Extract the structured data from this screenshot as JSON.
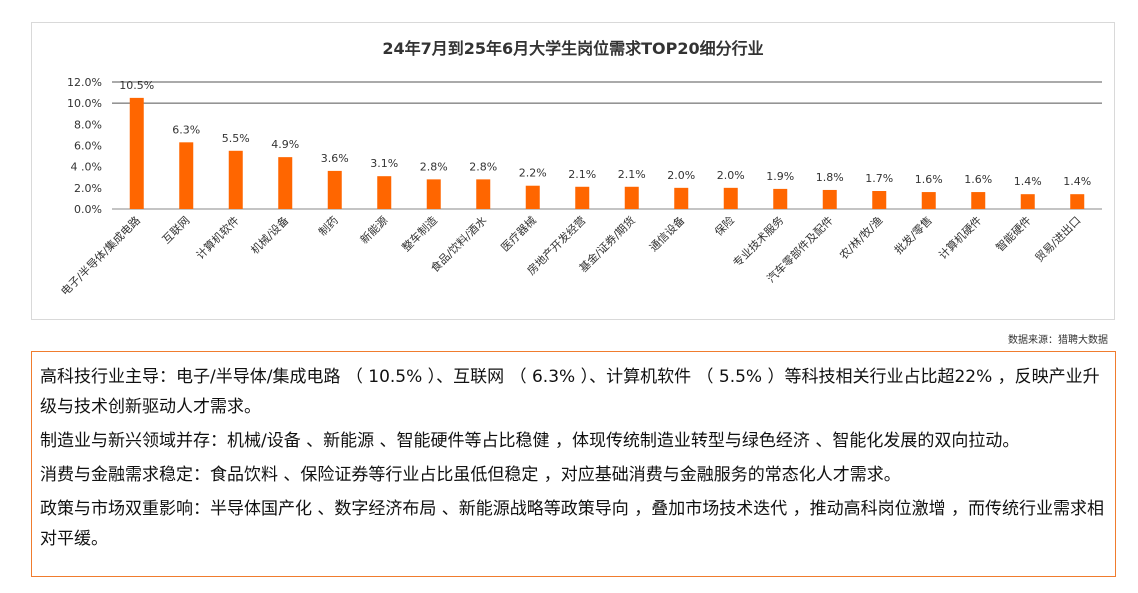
{
  "chart_data": {
    "type": "bar",
    "title": "24年7月到25年6月大学生岗位需求TOP20细分行业",
    "categories": [
      "电子/半导体/集成电路",
      "互联网",
      "计算机软件",
      "机械/设备",
      "制药",
      "新能源",
      "整车制造",
      "食品/饮料/酒水",
      "医疗器械",
      "房地产开发经营",
      "基金/证券/期货",
      "通信设备",
      "保险",
      "专业技术服务",
      "汽车零部件及配件",
      "农/林/牧/渔",
      "批发/零售",
      "计算机硬件",
      "智能硬件",
      "贸易/进出口"
    ],
    "values": [
      10.5,
      6.3,
      5.5,
      4.9,
      3.6,
      3.1,
      2.8,
      2.8,
      2.2,
      2.1,
      2.1,
      2.0,
      2.0,
      1.9,
      1.8,
      1.7,
      1.6,
      1.6,
      1.4,
      1.4
    ],
    "value_labels": [
      "10.5%",
      "6.3%",
      "5.5%",
      "4.9%",
      "3.6%",
      "3.1%",
      "2.8%",
      "2.8%",
      "2.2%",
      "2.1%",
      "2.1%",
      "2.0%",
      "2.0%",
      "1.9%",
      "1.8%",
      "1.7%",
      "1.6%",
      "1.6%",
      "1.4%",
      "1.4%"
    ],
    "y_ticks": [
      0,
      2,
      4,
      6,
      8,
      10,
      12
    ],
    "y_tick_labels": [
      "0.0%",
      "2.0%",
      "4 .0%",
      "6.0%",
      "8.0%",
      "10.0%",
      "12.0%"
    ],
    "ylim": [
      0,
      12
    ],
    "bar_color": "#ff6600",
    "grid": "top lines only",
    "xlabel": "",
    "ylabel": ""
  },
  "source_text": "数据来源：猎聘大数据",
  "notes": [
    "高科技行业主导：电子/半导体/集成电路 （ 10.5% ）、互联网 （ 6.3% ）、计算机软件 （ 5.5% ）等科技相关行业占比超22% ，反映产业升级与技术创新驱动人才需求。",
    "制造业与新兴领域并存：机械/设备 、新能源 、智能硬件等占比稳健 ，体现传统制造业转型与绿色经济 、智能化发展的双向拉动。",
    "消费与金融需求稳定：食品饮料 、保险证券等行业占比虽低但稳定 ，对应基础消费与金融服务的常态化人才需求。",
    "政策与市场双重影响：半导体国产化 、数字经济布局 、新能源战略等政策导向 ，叠加市场技术迭代 ，推动高科岗位激增 ，而传统行业需求相对平缓。"
  ]
}
